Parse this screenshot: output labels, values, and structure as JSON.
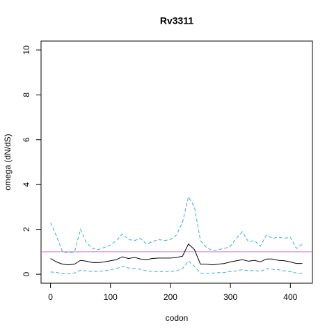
{
  "chart_data": {
    "type": "line",
    "title": "Rv3311",
    "x_label": "codon",
    "y_label": "omega (dN/dS)",
    "x": [
      0,
      10,
      20,
      30,
      40,
      50,
      60,
      70,
      80,
      90,
      100,
      110,
      120,
      130,
      140,
      150,
      160,
      170,
      180,
      190,
      200,
      210,
      220,
      230,
      240,
      250,
      260,
      270,
      280,
      290,
      300,
      310,
      320,
      330,
      340,
      350,
      360,
      370,
      380,
      390,
      400,
      410,
      420
    ],
    "series": [
      {
        "color": "#000000",
        "style": "solid",
        "values": [
          0.7,
          0.55,
          0.45,
          0.42,
          0.45,
          0.62,
          0.58,
          0.52,
          0.52,
          0.55,
          0.6,
          0.65,
          0.78,
          0.7,
          0.75,
          0.68,
          0.65,
          0.7,
          0.72,
          0.72,
          0.72,
          0.75,
          0.8,
          1.35,
          1.1,
          0.45,
          0.45,
          0.42,
          0.45,
          0.48,
          0.55,
          0.6,
          0.65,
          0.58,
          0.62,
          0.55,
          0.68,
          0.68,
          0.62,
          0.6,
          0.55,
          0.48,
          0.48
        ]
      },
      {
        "color": "#3aa8e0",
        "style": "dashed",
        "values": [
          2.3,
          1.7,
          1.0,
          0.95,
          1.0,
          2.0,
          1.4,
          1.15,
          1.1,
          1.2,
          1.3,
          1.5,
          1.8,
          1.55,
          1.5,
          1.6,
          1.35,
          1.45,
          1.55,
          1.5,
          1.55,
          1.75,
          2.3,
          3.45,
          3.0,
          1.5,
          1.2,
          1.05,
          1.1,
          1.15,
          1.25,
          1.6,
          1.9,
          1.45,
          1.5,
          1.25,
          1.75,
          1.6,
          1.65,
          1.6,
          1.65,
          1.15,
          1.35
        ]
      },
      {
        "color": "#3aa8e0",
        "style": "dashed",
        "values": [
          0.1,
          0.08,
          0.02,
          0.02,
          0.05,
          0.18,
          0.15,
          0.12,
          0.13,
          0.15,
          0.2,
          0.25,
          0.35,
          0.28,
          0.25,
          0.22,
          0.15,
          0.12,
          0.12,
          0.12,
          0.12,
          0.15,
          0.25,
          0.6,
          0.35,
          0.05,
          0.05,
          0.05,
          0.07,
          0.08,
          0.12,
          0.15,
          0.2,
          0.15,
          0.18,
          0.12,
          0.25,
          0.22,
          0.2,
          0.15,
          0.12,
          0.05,
          0.05
        ]
      }
    ],
    "hline": {
      "value": 1,
      "color": "#c77cd6"
    },
    "xlim": [
      -15.8,
      436.8
    ],
    "xticks": [
      0,
      100,
      200,
      300,
      400
    ],
    "ylim": [
      -0.4,
      10.4
    ],
    "yticks": [
      0,
      2,
      4,
      6,
      8,
      10
    ]
  }
}
